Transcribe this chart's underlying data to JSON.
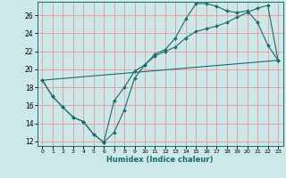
{
  "xlabel": "Humidex (Indice chaleur)",
  "bg_color": "#cce8e8",
  "grid_color": "#e8a0a0",
  "line_color": "#1a6b6b",
  "xlim": [
    -0.5,
    23.5
  ],
  "ylim": [
    11.5,
    27.5
  ],
  "xticks": [
    0,
    1,
    2,
    3,
    4,
    5,
    6,
    7,
    8,
    9,
    10,
    11,
    12,
    13,
    14,
    15,
    16,
    17,
    18,
    19,
    20,
    21,
    22,
    23
  ],
  "yticks": [
    12,
    14,
    16,
    18,
    20,
    22,
    24,
    26
  ],
  "line1_x": [
    0,
    1,
    2,
    3,
    4,
    5,
    6,
    7,
    8,
    9,
    10,
    11,
    12,
    13,
    14,
    15,
    16,
    17,
    18,
    19,
    20,
    21,
    22,
    23
  ],
  "line1_y": [
    18.8,
    17.0,
    15.8,
    14.7,
    14.2,
    12.8,
    11.9,
    13.0,
    15.5,
    19.0,
    20.5,
    21.7,
    22.2,
    23.5,
    25.6,
    27.3,
    27.3,
    27.0,
    26.5,
    26.3,
    26.5,
    25.2,
    22.7,
    21.0
  ],
  "line2_x": [
    0,
    1,
    2,
    3,
    4,
    5,
    6,
    7,
    8,
    9,
    10,
    11,
    12,
    13,
    14,
    15,
    16,
    17,
    18,
    19,
    20,
    21,
    22,
    23
  ],
  "line2_y": [
    18.8,
    17.0,
    15.8,
    14.7,
    14.2,
    12.8,
    11.9,
    16.5,
    18.0,
    19.8,
    20.5,
    21.5,
    22.0,
    22.5,
    23.5,
    24.2,
    24.5,
    24.8,
    25.2,
    25.8,
    26.3,
    26.8,
    27.1,
    21.0
  ],
  "line3_x": [
    0,
    23
  ],
  "line3_y": [
    18.8,
    21.0
  ]
}
